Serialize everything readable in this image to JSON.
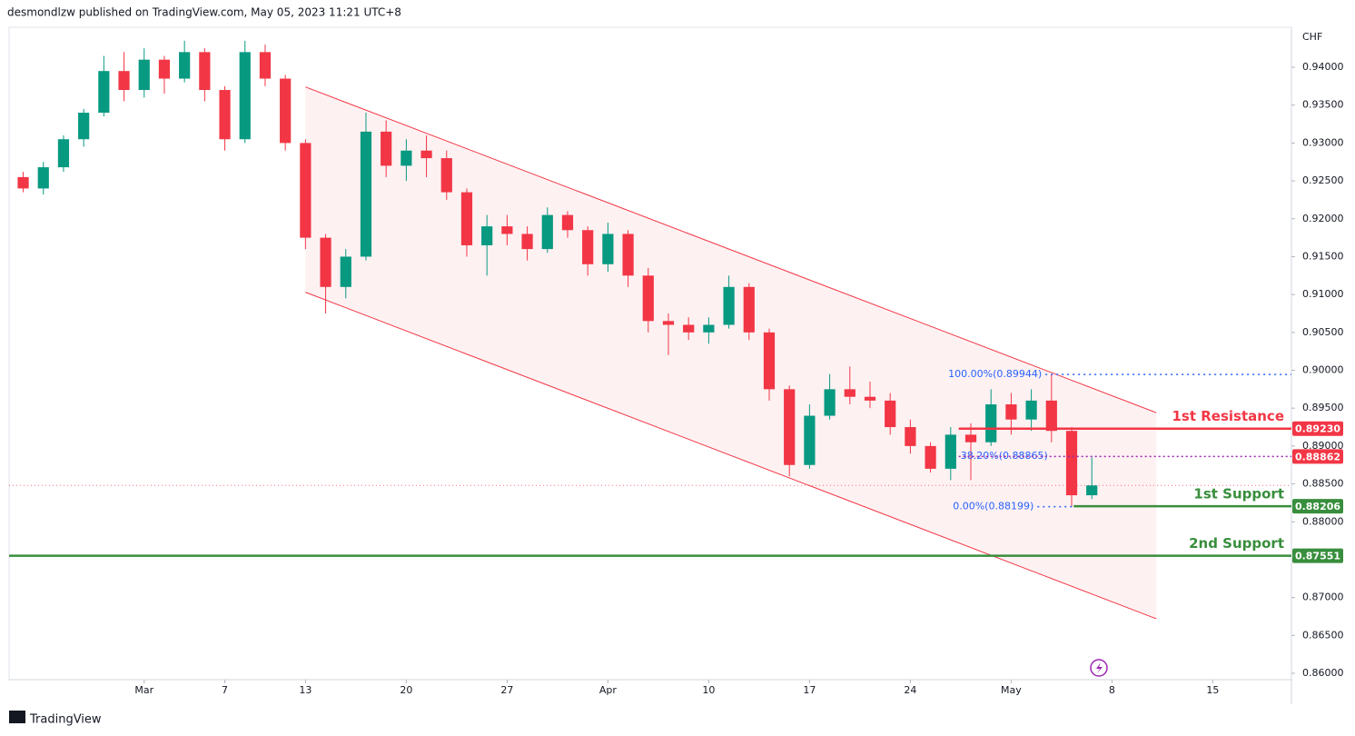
{
  "header": {
    "text": "desmondlzw published on TradingView.com, May 05, 2023 11:21 UTC+8"
  },
  "footer": {
    "brand": "TradingView"
  },
  "chart_data": {
    "type": "candlestick",
    "currency": "CHF",
    "up_color": "#089981",
    "down_color": "#f23645",
    "xlim": [
      -6.7,
      56.9
    ],
    "ylim": [
      0.85916,
      0.94528
    ],
    "xticks": [
      {
        "value": 0,
        "label": "Mar"
      },
      {
        "value": 4,
        "label": "7"
      },
      {
        "value": 8,
        "label": "13"
      },
      {
        "value": 13,
        "label": "20"
      },
      {
        "value": 18,
        "label": "27"
      },
      {
        "value": 23,
        "label": "Apr"
      },
      {
        "value": 28,
        "label": "10"
      },
      {
        "value": 33,
        "label": "17"
      },
      {
        "value": 38,
        "label": "24"
      },
      {
        "value": 43,
        "label": "May"
      },
      {
        "value": 48,
        "label": "8"
      },
      {
        "value": 53,
        "label": "15"
      }
    ],
    "yticks": [
      {
        "value": 0.86,
        "label": "0.86000"
      },
      {
        "value": 0.865,
        "label": "0.86500"
      },
      {
        "value": 0.87,
        "label": "0.87000"
      },
      {
        "value": 0.875,
        "label": "0.87500"
      },
      {
        "value": 0.88,
        "label": "0.88000"
      },
      {
        "value": 0.885,
        "label": "0.88500"
      },
      {
        "value": 0.89,
        "label": "0.89000"
      },
      {
        "value": 0.895,
        "label": "0.89500"
      },
      {
        "value": 0.9,
        "label": "0.90000"
      },
      {
        "value": 0.905,
        "label": "0.90500"
      },
      {
        "value": 0.91,
        "label": "0.91000"
      },
      {
        "value": 0.915,
        "label": "0.91500"
      },
      {
        "value": 0.92,
        "label": "0.92000"
      },
      {
        "value": 0.925,
        "label": "0.92500"
      },
      {
        "value": 0.93,
        "label": "0.93000"
      },
      {
        "value": 0.935,
        "label": "0.93500"
      },
      {
        "value": 0.94,
        "label": "0.94000"
      }
    ],
    "x": [
      -6,
      -5,
      -4,
      -3,
      -2,
      -1,
      0,
      1,
      2,
      3,
      4,
      5,
      6,
      7,
      8,
      9,
      10,
      11,
      12,
      13,
      14,
      15,
      16,
      17,
      18,
      19,
      20,
      21,
      22,
      23,
      24,
      25,
      26,
      27,
      28,
      29,
      30,
      31,
      32,
      33,
      34,
      35,
      36,
      37,
      38,
      39,
      40,
      41,
      42,
      43,
      44,
      45,
      46,
      47
    ],
    "open": [
      0.9255,
      0.924,
      0.9268,
      0.9305,
      0.934,
      0.9395,
      0.937,
      0.941,
      0.9385,
      0.942,
      0.937,
      0.9305,
      0.942,
      0.9385,
      0.93,
      0.9175,
      0.911,
      0.915,
      0.9315,
      0.927,
      0.929,
      0.928,
      0.9235,
      0.9165,
      0.919,
      0.918,
      0.916,
      0.9205,
      0.9185,
      0.914,
      0.918,
      0.9125,
      0.9065,
      0.906,
      0.905,
      0.906,
      0.911,
      0.905,
      0.8975,
      0.8875,
      0.894,
      0.8975,
      0.8965,
      0.896,
      0.8925,
      0.89,
      0.887,
      0.8915,
      0.8905,
      0.8955,
      0.8935,
      0.896,
      0.892,
      0.8835
    ],
    "high": [
      0.9262,
      0.9275,
      0.931,
      0.9345,
      0.9415,
      0.942,
      0.9425,
      0.9415,
      0.9435,
      0.9425,
      0.9375,
      0.9435,
      0.943,
      0.939,
      0.9305,
      0.918,
      0.916,
      0.934,
      0.933,
      0.9305,
      0.931,
      0.929,
      0.924,
      0.9205,
      0.9205,
      0.919,
      0.9215,
      0.921,
      0.919,
      0.9195,
      0.9185,
      0.9135,
      0.9075,
      0.907,
      0.907,
      0.9125,
      0.9115,
      0.9055,
      0.898,
      0.8955,
      0.8995,
      0.9005,
      0.8985,
      0.897,
      0.8935,
      0.8905,
      0.8925,
      0.893,
      0.8975,
      0.897,
      0.8975,
      0.8995,
      0.8925,
      0.8885
    ],
    "low": [
      0.9235,
      0.9232,
      0.9262,
      0.9295,
      0.9335,
      0.9355,
      0.936,
      0.9365,
      0.938,
      0.9355,
      0.929,
      0.93,
      0.9375,
      0.929,
      0.916,
      0.9075,
      0.9095,
      0.9145,
      0.9255,
      0.925,
      0.9255,
      0.9225,
      0.915,
      0.9125,
      0.9165,
      0.9145,
      0.9155,
      0.9175,
      0.9125,
      0.913,
      0.911,
      0.905,
      0.902,
      0.904,
      0.9035,
      0.9055,
      0.904,
      0.896,
      0.886,
      0.887,
      0.8935,
      0.8955,
      0.895,
      0.8915,
      0.889,
      0.8865,
      0.8855,
      0.8855,
      0.89,
      0.8915,
      0.892,
      0.8905,
      0.882,
      0.883
    ],
    "close": [
      0.924,
      0.9268,
      0.9305,
      0.934,
      0.9395,
      0.937,
      0.941,
      0.9385,
      0.942,
      0.937,
      0.9305,
      0.942,
      0.9385,
      0.93,
      0.9175,
      0.911,
      0.915,
      0.9315,
      0.927,
      0.929,
      0.928,
      0.9235,
      0.9165,
      0.919,
      0.918,
      0.916,
      0.9205,
      0.9185,
      0.914,
      0.918,
      0.9125,
      0.9065,
      0.906,
      0.905,
      0.906,
      0.911,
      0.905,
      0.8975,
      0.8875,
      0.894,
      0.8975,
      0.8965,
      0.896,
      0.8925,
      0.89,
      0.887,
      0.8915,
      0.8905,
      0.8955,
      0.8935,
      0.896,
      0.892,
      0.8835,
      0.8848
    ],
    "last_price": 0.8848,
    "channel": {
      "color": "#f23645",
      "upper": [
        [
          8,
          0.9374
        ],
        [
          50.2,
          0.8944
        ]
      ],
      "lower": [
        [
          8,
          0.9103
        ],
        [
          50.2,
          0.8672
        ]
      ]
    },
    "levels": [
      {
        "name": "1st Resistance",
        "value": 0.8923,
        "label": "0.89230",
        "color": "#f23645",
        "from": 40.4
      },
      {
        "value": 0.88862,
        "label": "0.88862",
        "color": "#f23645",
        "from": 40.4,
        "style": "dotted"
      },
      {
        "name": "1st Support",
        "value": 0.88206,
        "label": "0.88206",
        "color": "#388e3c",
        "from": 46.1
      },
      {
        "name": "2nd Support",
        "value": 0.87551,
        "label": "0.87551",
        "color": "#388e3c",
        "from": -6.7
      }
    ],
    "fib": [
      {
        "label": "100.00%(0.89944)",
        "value": 0.89944,
        "from": 44.7,
        "to": 56.9
      },
      {
        "label": "38.20%(0.88865)",
        "value": 0.88865,
        "from": 40.5,
        "to": 40.5
      },
      {
        "label": "0.00%(0.88199)",
        "value": 0.88199,
        "from": 44.3,
        "to": 46.1
      }
    ]
  }
}
